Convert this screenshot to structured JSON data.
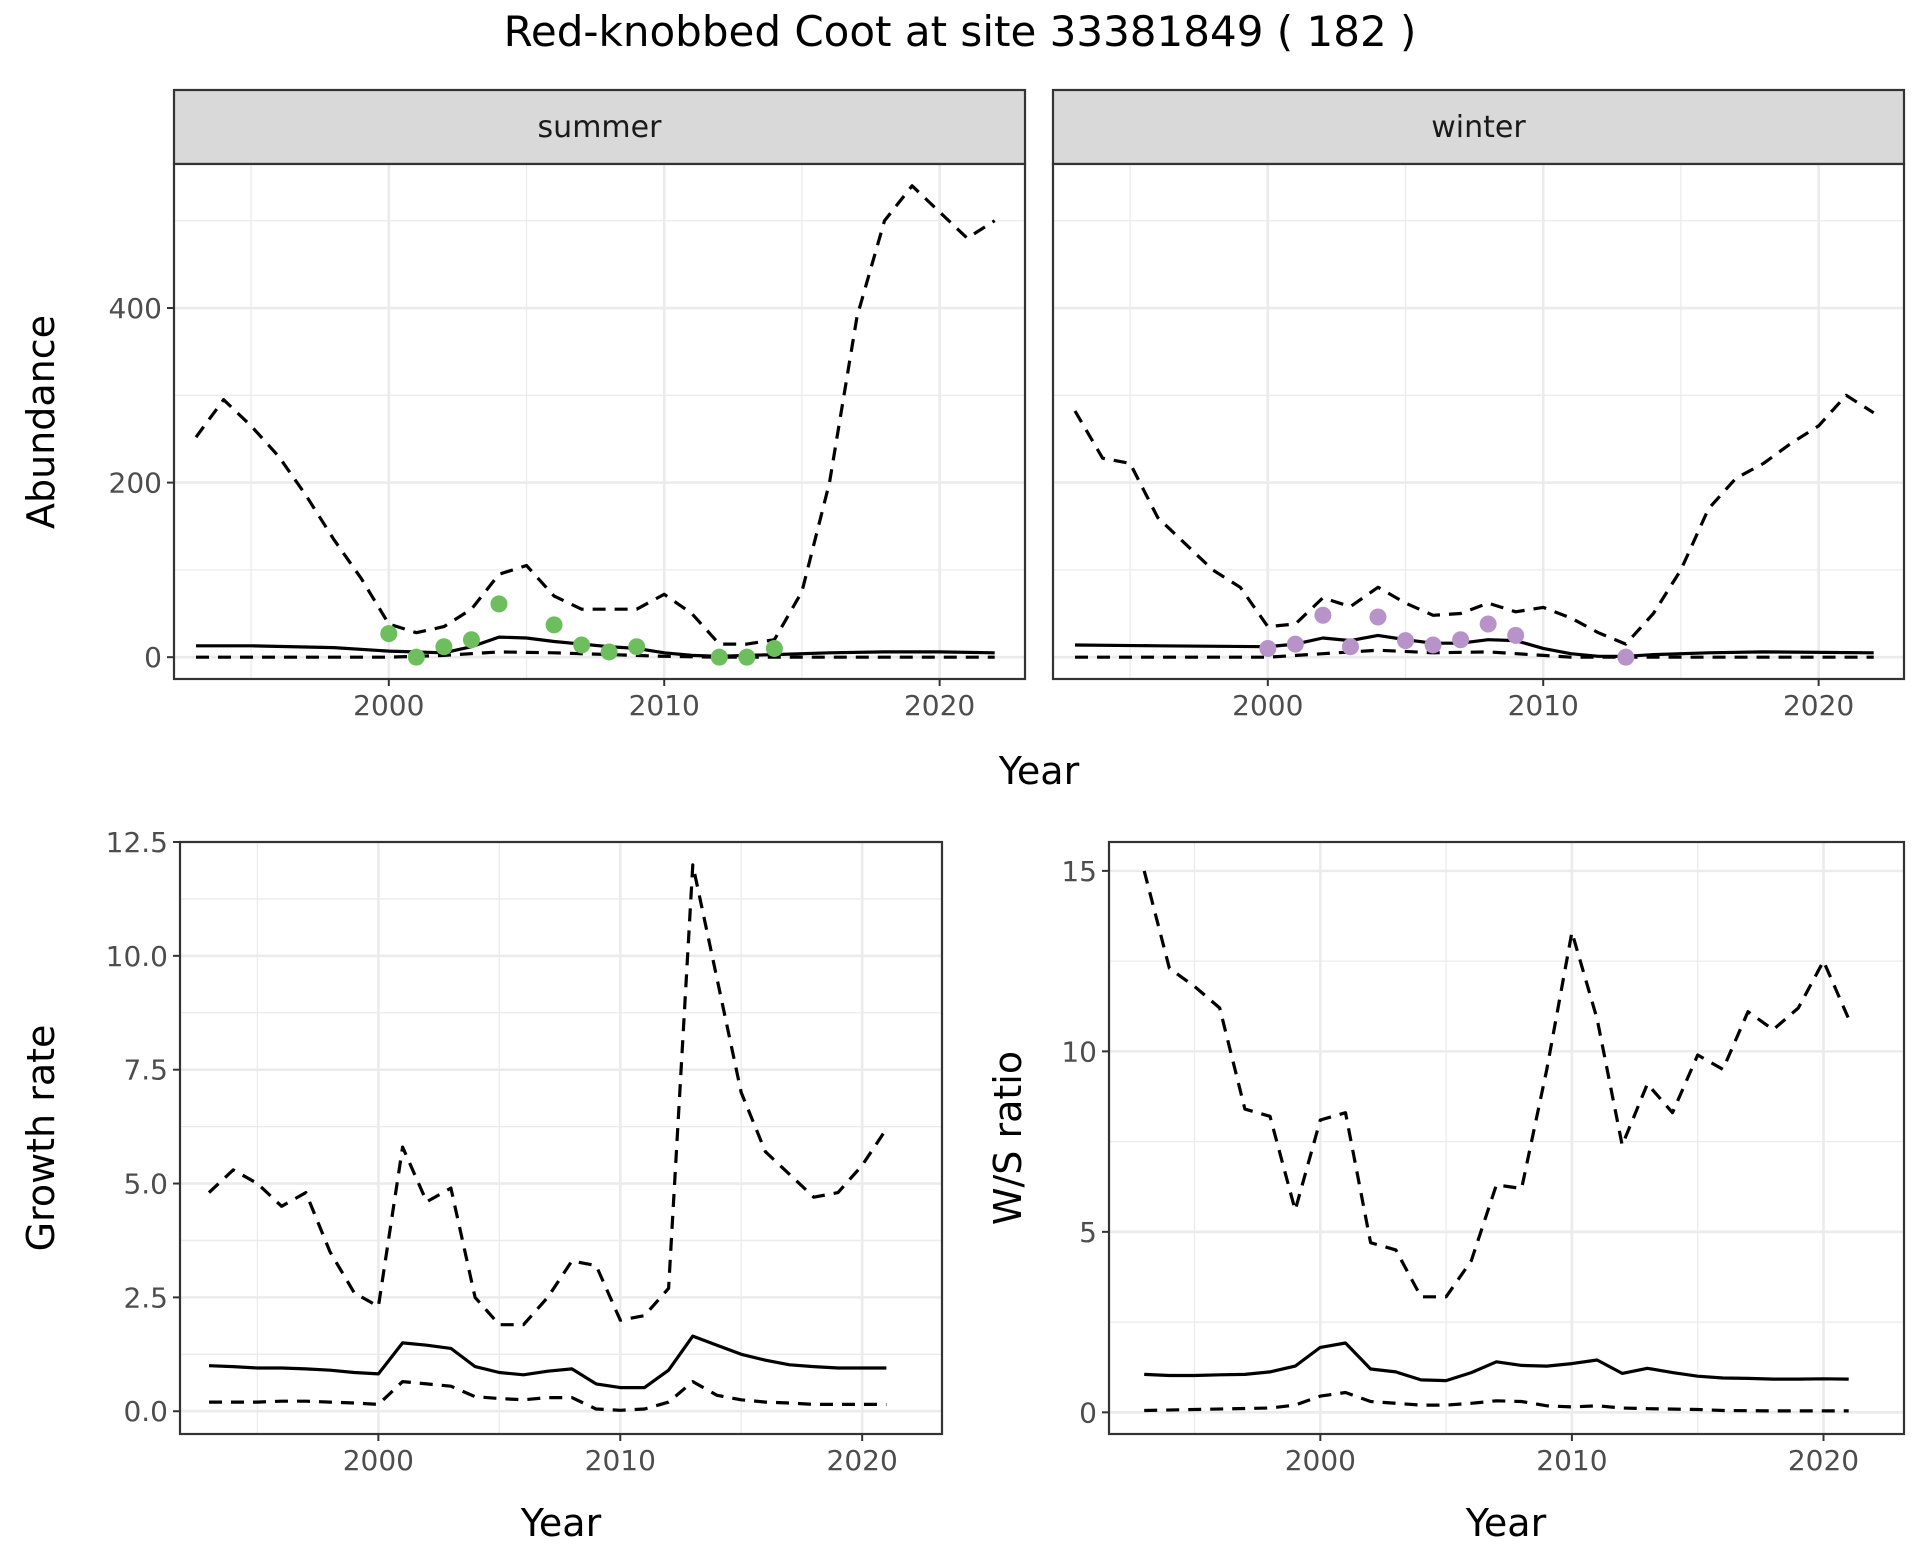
{
  "title": "Red-knobbed Coot at site 33381849 ( 182 )",
  "colors": {
    "summer_points": "#6dbf5e",
    "winter_points": "#b793c9",
    "strip_fill": "#d9d9d9"
  },
  "chart_data": [
    {
      "type": "line",
      "id": "abundance",
      "facets": [
        "summer",
        "winter"
      ],
      "xlabel": "Year",
      "ylabel": "Abundance",
      "xlim": [
        1992.2,
        2023.1
      ],
      "ylim": [
        -25,
        565
      ],
      "xticks": [
        2000,
        2010,
        2020
      ],
      "yticks": [
        0,
        200,
        400
      ],
      "panels": [
        {
          "facet": "summer",
          "series": [
            {
              "role": "lower",
              "style": "dashed",
              "x": [
                1993,
                1995,
                2000,
                2002,
                2004,
                2006,
                2010,
                2012,
                2014,
                2016,
                2020,
                2022
              ],
              "y": [
                0,
                0,
                0,
                2,
                6,
                5,
                1,
                0,
                0,
                0,
                0,
                0
              ]
            },
            {
              "role": "mean",
              "style": "solid",
              "x": [
                1993,
                1995,
                1998,
                2000,
                2002,
                2003,
                2004,
                2005,
                2006,
                2008,
                2009,
                2010,
                2011,
                2012,
                2013,
                2014,
                2016,
                2018,
                2020,
                2022
              ],
              "y": [
                13,
                13,
                11,
                7,
                5,
                12,
                23,
                22,
                18,
                12,
                10,
                5,
                2,
                1,
                2,
                3,
                5,
                6,
                6,
                5
              ]
            },
            {
              "role": "upper",
              "style": "dashed",
              "x": [
                1993,
                1994,
                1995,
                1996,
                1997,
                1998,
                1999,
                2000,
                2001,
                2002,
                2003,
                2004,
                2005,
                2006,
                2007,
                2008,
                2009,
                2010,
                2011,
                2012,
                2013,
                2014,
                2015,
                2016,
                2017,
                2018,
                2019,
                2020,
                2021,
                2022
              ],
              "y": [
                252,
                295,
                265,
                230,
                185,
                135,
                90,
                38,
                28,
                35,
                55,
                95,
                105,
                70,
                55,
                55,
                55,
                72,
                50,
                15,
                15,
                20,
                75,
                200,
                390,
                500,
                540,
                510,
                480,
                500
              ]
            }
          ],
          "points": {
            "x": [
              2000,
              2001,
              2002,
              2003,
              2004,
              2006,
              2007,
              2008,
              2009,
              2012,
              2013,
              2014
            ],
            "y": [
              27,
              0,
              12,
              20,
              61,
              37,
              14,
              6,
              12,
              0,
              0,
              10
            ]
          }
        },
        {
          "facet": "winter",
          "series": [
            {
              "role": "lower",
              "style": "dashed",
              "x": [
                1993,
                1999,
                2000,
                2002,
                2004,
                2006,
                2008,
                2010,
                2011,
                2012,
                2013,
                2016,
                2022
              ],
              "y": [
                0,
                0,
                0,
                4,
                8,
                5,
                6,
                2,
                0,
                0,
                0,
                0,
                0
              ]
            },
            {
              "role": "mean",
              "style": "solid",
              "x": [
                1993,
                1996,
                2000,
                2001,
                2002,
                2003,
                2004,
                2005,
                2006,
                2007,
                2008,
                2009,
                2010,
                2011,
                2012,
                2013,
                2014,
                2016,
                2018,
                2022
              ],
              "y": [
                14,
                13,
                12,
                15,
                22,
                19,
                25,
                20,
                16,
                16,
                20,
                19,
                10,
                4,
                1,
                1,
                3,
                5,
                6,
                5
              ]
            },
            {
              "role": "upper",
              "style": "dashed",
              "x": [
                1993,
                1994,
                1995,
                1996,
                1997,
                1998,
                1999,
                2000,
                2001,
                2002,
                2003,
                2004,
                2005,
                2006,
                2007,
                2008,
                2009,
                2010,
                2011,
                2012,
                2013,
                2014,
                2015,
                2016,
                2017,
                2018,
                2019,
                2020,
                2021,
                2022
              ],
              "y": [
                282,
                228,
                222,
                160,
                130,
                100,
                80,
                35,
                38,
                68,
                58,
                80,
                62,
                48,
                50,
                62,
                52,
                57,
                45,
                28,
                15,
                50,
                100,
                170,
                205,
                222,
                245,
                265,
                300,
                280
              ]
            }
          ],
          "points": {
            "x": [
              2000,
              2001,
              2002,
              2003,
              2004,
              2005,
              2006,
              2007,
              2008,
              2009,
              2013
            ],
            "y": [
              10,
              15,
              48,
              12,
              46,
              19,
              14,
              20,
              38,
              25,
              0
            ]
          }
        }
      ]
    },
    {
      "type": "line",
      "id": "growth",
      "xlabel": "Year",
      "ylabel": "Growth rate",
      "xlim": [
        1991.8,
        2023.3
      ],
      "ylim": [
        -0.5,
        12.5
      ],
      "xticks": [
        2000,
        2010,
        2020
      ],
      "yticks": [
        0.0,
        2.5,
        5.0,
        7.5,
        10.0,
        12.5
      ],
      "ytick_labels": [
        "0.0",
        "2.5",
        "5.0",
        "7.5",
        "10.0",
        "12.5"
      ],
      "series": [
        {
          "role": "lower",
          "style": "dashed",
          "x": [
            1993,
            1994,
            1995,
            1996,
            1997,
            1998,
            1999,
            2000,
            2001,
            2002,
            2003,
            2004,
            2005,
            2006,
            2007,
            2008,
            2009,
            2010,
            2011,
            2012,
            2013,
            2014,
            2015,
            2016,
            2017,
            2018,
            2019,
            2020,
            2021
          ],
          "y": [
            0.2,
            0.2,
            0.2,
            0.22,
            0.22,
            0.2,
            0.18,
            0.15,
            0.65,
            0.6,
            0.55,
            0.32,
            0.28,
            0.25,
            0.3,
            0.3,
            0.05,
            0.02,
            0.05,
            0.2,
            0.65,
            0.35,
            0.25,
            0.2,
            0.18,
            0.15,
            0.15,
            0.15,
            0.15
          ]
        },
        {
          "role": "mean",
          "style": "solid",
          "x": [
            1993,
            1994,
            1995,
            1996,
            1997,
            1998,
            1999,
            2000,
            2001,
            2002,
            2003,
            2004,
            2005,
            2006,
            2007,
            2008,
            2009,
            2010,
            2011,
            2012,
            2013,
            2014,
            2015,
            2016,
            2017,
            2018,
            2019,
            2020,
            2021
          ],
          "y": [
            1.0,
            0.98,
            0.95,
            0.95,
            0.93,
            0.9,
            0.85,
            0.82,
            1.5,
            1.45,
            1.38,
            0.98,
            0.85,
            0.8,
            0.88,
            0.93,
            0.6,
            0.52,
            0.52,
            0.9,
            1.65,
            1.45,
            1.25,
            1.12,
            1.02,
            0.98,
            0.95,
            0.95,
            0.95
          ]
        },
        {
          "role": "upper",
          "style": "dashed",
          "x": [
            1993,
            1994,
            1995,
            1996,
            1997,
            1998,
            1999,
            2000,
            2001,
            2002,
            2003,
            2004,
            2005,
            2006,
            2007,
            2008,
            2009,
            2010,
            2011,
            2012,
            2013,
            2014,
            2015,
            2016,
            2017,
            2018,
            2019,
            2020,
            2021
          ],
          "y": [
            4.8,
            5.3,
            5.0,
            4.5,
            4.8,
            3.5,
            2.6,
            2.3,
            5.8,
            4.6,
            4.9,
            2.5,
            1.9,
            1.9,
            2.5,
            3.3,
            3.2,
            2.0,
            2.1,
            2.7,
            12.0,
            9.5,
            7.0,
            5.7,
            5.2,
            4.7,
            4.8,
            5.4,
            6.2
          ]
        }
      ]
    },
    {
      "type": "line",
      "id": "ws_ratio",
      "xlabel": "Year",
      "ylabel": "W/S ratio",
      "xlim": [
        1991.6,
        2023.2
      ],
      "ylim": [
        -0.6,
        15.8
      ],
      "xticks": [
        2000,
        2010,
        2020
      ],
      "yticks": [
        0,
        5,
        10,
        15
      ],
      "series": [
        {
          "role": "lower",
          "style": "dashed",
          "x": [
            1993,
            1995,
            1998,
            1999,
            2000,
            2001,
            2002,
            2003,
            2004,
            2005,
            2006,
            2007,
            2008,
            2009,
            2010,
            2011,
            2012,
            2013,
            2015,
            2016,
            2018,
            2020,
            2021
          ],
          "y": [
            0.05,
            0.08,
            0.12,
            0.2,
            0.45,
            0.55,
            0.3,
            0.25,
            0.2,
            0.2,
            0.25,
            0.32,
            0.3,
            0.18,
            0.15,
            0.18,
            0.12,
            0.1,
            0.08,
            0.05,
            0.04,
            0.04,
            0.04
          ]
        },
        {
          "role": "mean",
          "style": "solid",
          "x": [
            1993,
            1994,
            1995,
            1996,
            1997,
            1998,
            1999,
            2000,
            2001,
            2002,
            2003,
            2004,
            2005,
            2006,
            2007,
            2008,
            2009,
            2010,
            2011,
            2012,
            2013,
            2014,
            2015,
            2016,
            2017,
            2018,
            2019,
            2020,
            2021
          ],
          "y": [
            1.05,
            1.02,
            1.02,
            1.04,
            1.05,
            1.12,
            1.28,
            1.8,
            1.92,
            1.2,
            1.12,
            0.9,
            0.88,
            1.1,
            1.4,
            1.3,
            1.28,
            1.35,
            1.45,
            1.08,
            1.22,
            1.1,
            1.0,
            0.95,
            0.94,
            0.92,
            0.92,
            0.93,
            0.92
          ]
        },
        {
          "role": "upper",
          "style": "dashed",
          "x": [
            1993,
            1994,
            1995,
            1996,
            1997,
            1998,
            1999,
            2000,
            2001,
            2002,
            2003,
            2004,
            2005,
            2006,
            2007,
            2008,
            2009,
            2010,
            2011,
            2012,
            2013,
            2014,
            2015,
            2016,
            2017,
            2018,
            2019,
            2020,
            2021
          ],
          "y": [
            15.0,
            12.3,
            11.8,
            11.2,
            8.4,
            8.2,
            5.6,
            8.1,
            8.3,
            4.7,
            4.5,
            3.2,
            3.2,
            4.2,
            6.3,
            6.2,
            9.5,
            13.3,
            10.9,
            7.4,
            9.1,
            8.3,
            9.9,
            9.5,
            11.1,
            10.6,
            11.2,
            12.5,
            10.9
          ]
        }
      ]
    }
  ]
}
